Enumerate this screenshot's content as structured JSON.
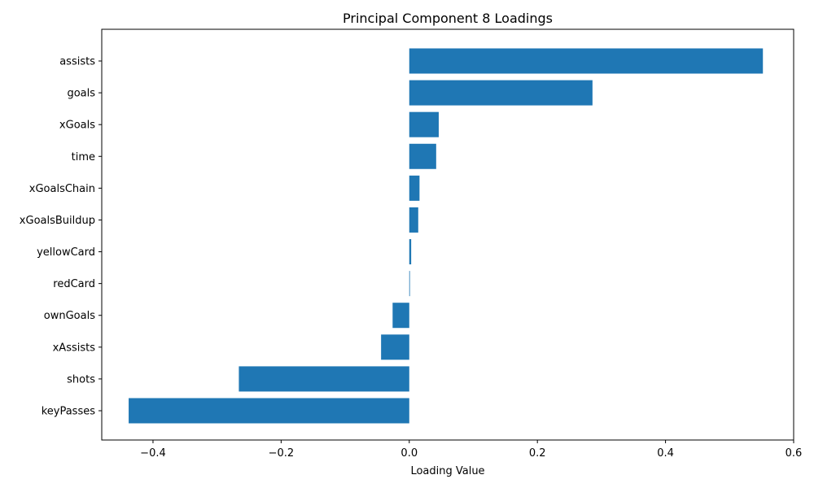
{
  "chart_data": {
    "type": "bar",
    "orientation": "horizontal",
    "title": "Principal Component 8 Loadings",
    "xlabel": "Loading Value",
    "ylabel": "",
    "xlim": [
      -0.48,
      0.6
    ],
    "xticks": [
      -0.4,
      -0.2,
      0.0,
      0.2,
      0.4,
      0.6
    ],
    "xtick_labels": [
      "−0.4",
      "−0.2",
      "0.0",
      "0.2",
      "0.4",
      "0.6"
    ],
    "categories": [
      "assists",
      "goals",
      "xGoals",
      "time",
      "xGoalsChain",
      "xGoalsBuildup",
      "yellowCard",
      "redCard",
      "ownGoals",
      "xAssists",
      "shots",
      "keyPasses"
    ],
    "values": [
      0.552,
      0.286,
      0.046,
      0.042,
      0.016,
      0.014,
      0.003,
      0.001,
      -0.026,
      -0.044,
      -0.266,
      -0.438
    ],
    "bar_color": "#1f77b4",
    "grid": false,
    "legend": "none"
  }
}
